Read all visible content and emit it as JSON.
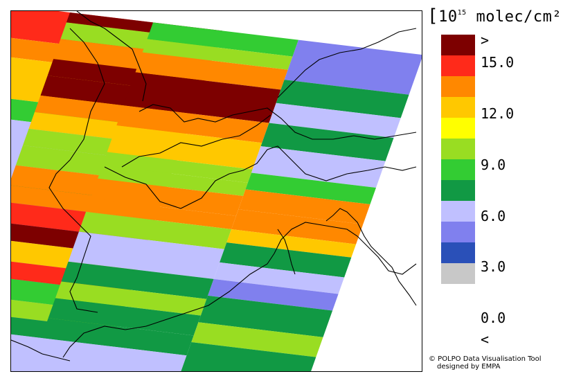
{
  "map": {
    "legend_title_prefix": "10",
    "legend_title_exp": "15",
    "legend_title_unit": "molec/cm²",
    "scale_labels": [
      ">",
      "15.0",
      "12.0",
      "9.0",
      "6.0",
      "3.0",
      "0.0",
      "<"
    ],
    "scale_colors": [
      "#7d0000",
      "#ff2a1a",
      "#ff8800",
      "#ffc800",
      "#ffff00",
      "#99dd22",
      "#33cc33",
      "#119944",
      "#c0c0ff",
      "#8080ee",
      "#2a50b8",
      "#c8c8c8"
    ],
    "credit_line1": "© POLPO Data Visualisation Tool",
    "credit_line2": "designed by EMPA",
    "background_color": "#ffffff",
    "coastline_color": "#000000"
  }
}
